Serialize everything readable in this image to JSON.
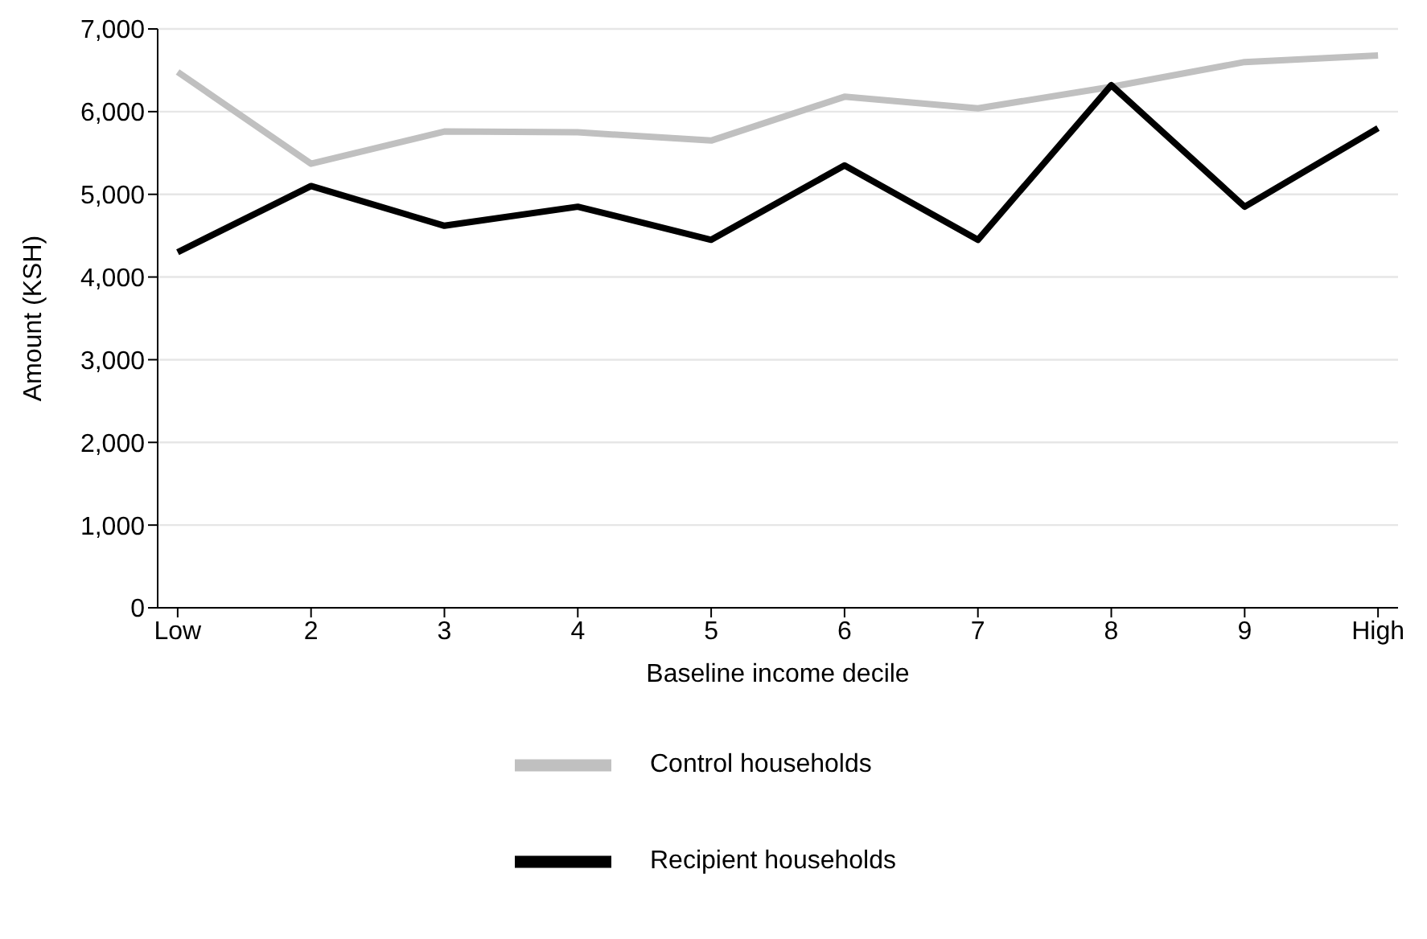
{
  "chart_data": {
    "type": "line",
    "xlabel": "Baseline income decile",
    "ylabel": "Amount (KSH)",
    "categories": [
      "Low",
      "2",
      "3",
      "4",
      "5",
      "6",
      "7",
      "8",
      "9",
      "High"
    ],
    "series": [
      {
        "name": "Control households",
        "color": "#c0c0c0",
        "values": [
          6480,
          5370,
          5760,
          5750,
          5650,
          6180,
          6040,
          6300,
          6600,
          6680
        ]
      },
      {
        "name": "Recipient households",
        "color": "#000000",
        "values": [
          4300,
          5100,
          4620,
          4850,
          4450,
          5350,
          4450,
          6320,
          4850,
          5800
        ]
      }
    ],
    "ylim": [
      0,
      7000
    ],
    "yticks": [
      {
        "value": 0,
        "label": "0"
      },
      {
        "value": 1000,
        "label": "1,000"
      },
      {
        "value": 2000,
        "label": "2,000"
      },
      {
        "value": 3000,
        "label": "3,000"
      },
      {
        "value": 4000,
        "label": "4,000"
      },
      {
        "value": 5000,
        "label": "5,000"
      },
      {
        "value": 6000,
        "label": "6,000"
      },
      {
        "value": 7000,
        "label": "7,000"
      }
    ],
    "grid": "y",
    "legend": "bottom",
    "marker": "none",
    "line_style": "solid"
  }
}
